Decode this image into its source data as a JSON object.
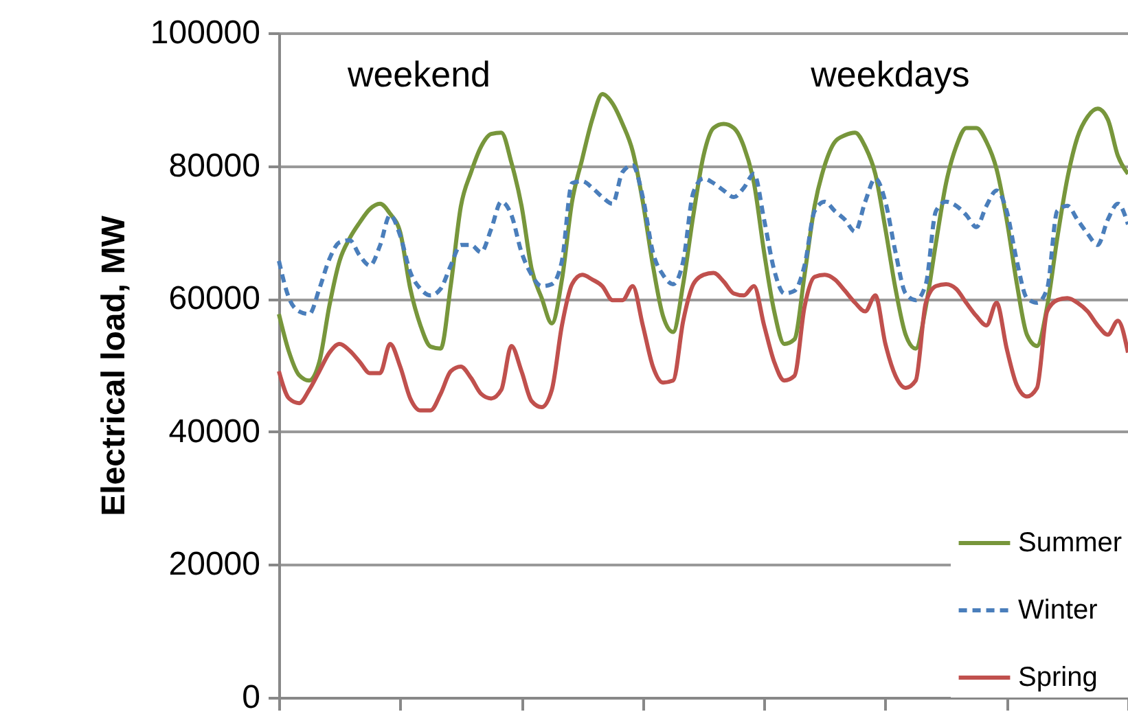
{
  "chart_data": {
    "type": "line",
    "ylabel": "Electrical load, MW",
    "categories": [
      null,
      null,
      null,
      null,
      null,
      null,
      null,
      null,
      null,
      null,
      null,
      null,
      null,
      null,
      null,
      null,
      null,
      null,
      null,
      null,
      null,
      null,
      null,
      null,
      null,
      null,
      null,
      null,
      null,
      null,
      null,
      null,
      null,
      null,
      null,
      null,
      null,
      null,
      null,
      null,
      null,
      null,
      null,
      null,
      null,
      null,
      null,
      null,
      null,
      null,
      null,
      null,
      null,
      null,
      null,
      null,
      null,
      null,
      null,
      null,
      null,
      null,
      null,
      null,
      null,
      null,
      null,
      null,
      null,
      null,
      null,
      null,
      null,
      null,
      null,
      null,
      null,
      null,
      null,
      null,
      null,
      null,
      null,
      null,
      null
    ],
    "series": [
      {
        "name": "Summer",
        "color": "#77963b",
        "line_style": "solid",
        "values": [
          57700,
          52000,
          48500,
          47700,
          50500,
          59000,
          65700,
          69100,
          71500,
          73500,
          74300,
          72800,
          70000,
          61500,
          56000,
          52800,
          52500,
          62000,
          73900,
          79000,
          82900,
          84800,
          85000,
          80500,
          74000,
          64500,
          60100,
          56300,
          62900,
          74600,
          81000,
          87000,
          90800,
          89400,
          86300,
          82200,
          74600,
          65000,
          57400,
          55000,
          62300,
          72600,
          81500,
          85700,
          86300,
          85700,
          82900,
          77400,
          67000,
          58100,
          53200,
          53900,
          63600,
          74000,
          80100,
          83600,
          84600,
          85000,
          82900,
          78800,
          70500,
          61500,
          54600,
          52500,
          58800,
          68400,
          77400,
          82900,
          85700,
          85700,
          83600,
          79500,
          71900,
          62300,
          54600,
          52900,
          58800,
          69100,
          78100,
          84300,
          87400,
          88600,
          87000,
          81500,
          78800
        ]
      },
      {
        "name": "Winter",
        "color": "#4a7ebb",
        "line_style": "dashed",
        "values": [
          65700,
          60100,
          58100,
          57700,
          61500,
          66000,
          68500,
          68800,
          66500,
          65000,
          68000,
          72600,
          69500,
          64000,
          61500,
          60500,
          61500,
          65000,
          68100,
          68100,
          67000,
          70500,
          74600,
          72600,
          67000,
          63600,
          61900,
          62200,
          65700,
          77400,
          77700,
          76700,
          75300,
          74300,
          79100,
          80100,
          75300,
          67000,
          63600,
          62200,
          65700,
          76000,
          78100,
          77400,
          76300,
          75300,
          76700,
          78800,
          71900,
          64300,
          60800,
          61200,
          65000,
          73200,
          74600,
          73200,
          71900,
          70100,
          74600,
          78100,
          74600,
          67000,
          60800,
          59800,
          62200,
          73200,
          74600,
          74000,
          72600,
          70800,
          74000,
          76300,
          73200,
          65700,
          60100,
          59400,
          61500,
          73200,
          74000,
          71900,
          69800,
          68100,
          71900,
          74300,
          71200
        ]
      },
      {
        "name": "Spring",
        "color": "#c0504d",
        "line_style": "solid",
        "values": [
          49100,
          45000,
          44300,
          46300,
          49100,
          51900,
          53200,
          52200,
          50500,
          48800,
          48800,
          53200,
          49800,
          45000,
          43200,
          43200,
          45700,
          49100,
          49800,
          48100,
          45700,
          45000,
          46300,
          52900,
          49100,
          44600,
          43700,
          46300,
          56000,
          62200,
          63600,
          62900,
          61900,
          59800,
          59800,
          61900,
          56000,
          49800,
          47400,
          47700,
          56700,
          62200,
          63600,
          63900,
          62600,
          60800,
          60500,
          61900,
          56000,
          50500,
          47700,
          48400,
          58800,
          63300,
          63600,
          62900,
          61200,
          59400,
          58100,
          60500,
          53200,
          48400,
          46600,
          47700,
          59400,
          61900,
          62200,
          61500,
          59400,
          57400,
          56000,
          59400,
          52500,
          47000,
          45300,
          46600,
          58100,
          59800,
          60100,
          59400,
          58100,
          56000,
          54600,
          56700,
          51900
        ]
      }
    ],
    "ylim": [
      0,
      100000
    ],
    "yticks": [
      0,
      20000,
      40000,
      60000,
      80000,
      100000
    ],
    "grid": "y",
    "legend": "bottom right",
    "tick_labels": "y",
    "annotations": [
      "weekend",
      "weekdays"
    ]
  }
}
